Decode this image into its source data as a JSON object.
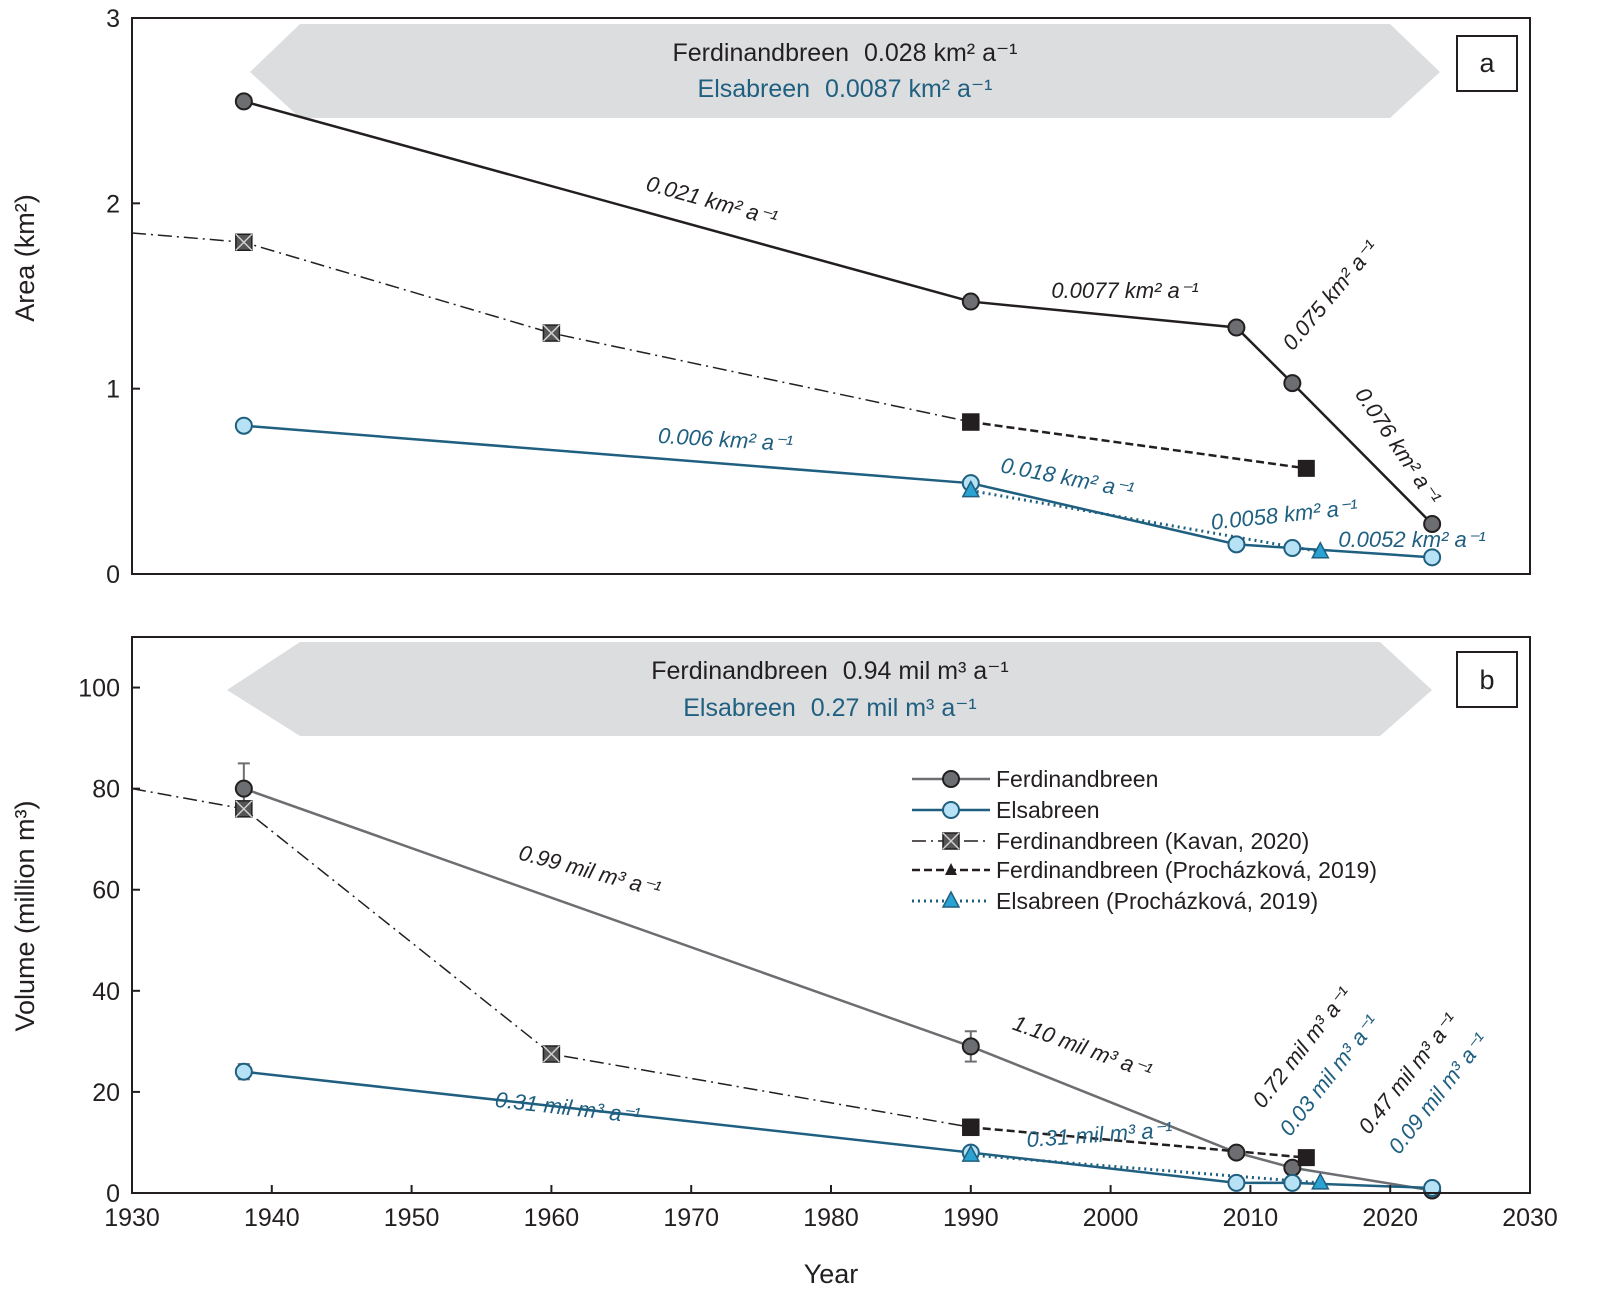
{
  "colors": {
    "ferdinand": "#231f20",
    "ferdinand_volume_line": "#6d6e71",
    "elsa": "#1f5f80",
    "elsa_marker": "#b7e1f4",
    "elsa_triangle": "#2aa3d3",
    "ferdinand_marker": "#6d6e71",
    "kavan_marker": "#555555",
    "banner_fill": "#dcdddf"
  },
  "chart_data": [
    {
      "type": "line",
      "panel": "a",
      "ylabel": "Area (km²)",
      "xlim": [
        1930,
        2030
      ],
      "ylim": [
        0,
        3
      ],
      "yticks": [
        "0",
        "1",
        "2",
        "3"
      ],
      "banner": {
        "line1_name": "Ferdinandbreen",
        "line1_value": "0.028 km² a⁻¹",
        "line2_name": "Elsabreen",
        "line2_value": "0.0087 km² a⁻¹"
      },
      "series": [
        {
          "name": "Ferdinandbreen",
          "x": [
            1938,
            1990,
            2009,
            2013,
            2023
          ],
          "y": [
            2.55,
            1.47,
            1.33,
            1.03,
            0.27
          ]
        },
        {
          "name": "Elsabreen",
          "x": [
            1938,
            1990,
            2009,
            2013,
            2023
          ],
          "y": [
            0.8,
            0.49,
            0.16,
            0.14,
            0.09
          ]
        },
        {
          "name": "Ferdinandbreen (Kavan, 2020)",
          "x": [
            1930,
            1938,
            1960,
            1990
          ],
          "y": [
            1.84,
            1.79,
            1.3,
            0.82
          ]
        },
        {
          "name": "Ferdinandbreen (Procházková, 2019)",
          "x": [
            1990,
            2014
          ],
          "y": [
            0.82,
            0.57
          ]
        },
        {
          "name": "Elsabreen (Procházková, 2019)",
          "x": [
            1990,
            2015
          ],
          "y": [
            0.45,
            0.12
          ]
        }
      ],
      "annotations": [
        "0.021 km² a⁻¹",
        "0.0077 km² a⁻¹",
        "0.075 km² a⁻¹",
        "0.076 km² a⁻¹",
        "0.006 km² a⁻¹",
        "0.018 km² a⁻¹",
        "0.0058 km² a⁻¹",
        "0.0052 km² a⁻¹"
      ]
    },
    {
      "type": "line",
      "panel": "b",
      "ylabel": "Volume (million m³)",
      "xlabel": "Year",
      "xlim": [
        1930,
        2030
      ],
      "ylim": [
        0,
        110
      ],
      "xticks": [
        "1930",
        "1940",
        "1950",
        "1960",
        "1970",
        "1980",
        "1990",
        "2000",
        "2010",
        "2020",
        "2030"
      ],
      "yticks": [
        "0",
        "20",
        "40",
        "60",
        "80",
        "100"
      ],
      "banner": {
        "line1_name": "Ferdinandbreen",
        "line1_value": "0.94 mil m³ a⁻¹",
        "line2_name": "Elsabreen",
        "line2_value": "0.27 mil m³ a⁻¹"
      },
      "series": [
        {
          "name": "Ferdinandbreen",
          "x": [
            1938,
            1990,
            2009,
            2013,
            2023
          ],
          "y": [
            80,
            29,
            8,
            5,
            0.5
          ],
          "error": [
            5,
            3,
            0,
            0,
            0
          ]
        },
        {
          "name": "Elsabreen",
          "x": [
            1938,
            1990,
            2009,
            2013,
            2023
          ],
          "y": [
            24,
            8,
            2,
            2,
            1
          ],
          "error": [
            1.5,
            0,
            0,
            0,
            0
          ]
        },
        {
          "name": "Ferdinandbreen (Kavan, 2020)",
          "x": [
            1930,
            1938,
            1960,
            1990
          ],
          "y": [
            80,
            76,
            27.5,
            13
          ]
        },
        {
          "name": "Ferdinandbreen (Procházková, 2019)",
          "x": [
            1990,
            2014
          ],
          "y": [
            13,
            7
          ]
        },
        {
          "name": "Elsabreen (Procházková, 2019)",
          "x": [
            1990,
            2015
          ],
          "y": [
            7.5,
            2
          ]
        }
      ],
      "annotations": [
        "0.99 mil m³ a⁻¹",
        "1.10 mil m³ a⁻¹",
        "0.72 mil m³ a⁻¹",
        "0.47 mil m³ a⁻¹",
        "0.31 mil m³ a⁻¹",
        "0.31 mil m³ a⁻¹",
        "0.03 mil m³ a⁻¹",
        "0.09 mil m³ a⁻¹"
      ],
      "legend": [
        "Ferdinandbreen",
        "Elsabreen",
        "Ferdinandbreen (Kavan, 2020)",
        "Ferdinandbreen (Procházková, 2019)",
        "Elsabreen (Procházková, 2019)"
      ]
    }
  ]
}
